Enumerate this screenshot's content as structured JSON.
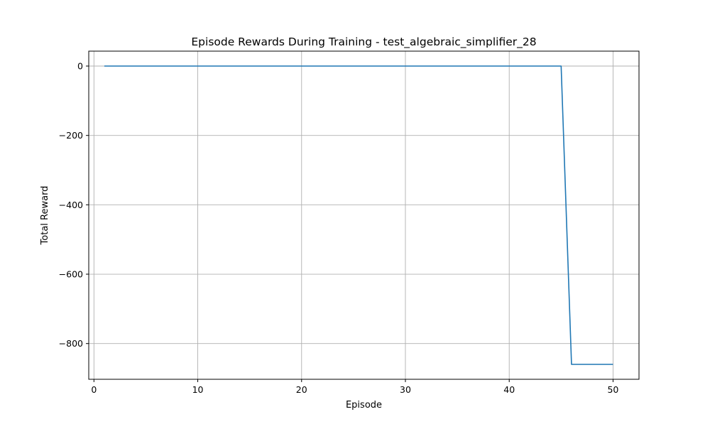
{
  "chart_data": {
    "type": "line",
    "title": "Episode Rewards During Training - test_algebraic_simplifier_28",
    "xlabel": "Episode",
    "ylabel": "Total Reward",
    "xlim": [
      -0.5,
      52.5
    ],
    "ylim": [
      -903,
      43
    ],
    "x_ticks": [
      0,
      10,
      20,
      30,
      40,
      50
    ],
    "x_tick_labels": [
      "0",
      "10",
      "20",
      "30",
      "40",
      "50"
    ],
    "y_ticks": [
      0,
      -200,
      -400,
      -600,
      -800
    ],
    "y_tick_labels": [
      "0",
      "−200",
      "−400",
      "−600",
      "−800"
    ],
    "grid": true,
    "legend": "none",
    "line_color": "#1f77b4",
    "grid_color": "#b0b0b0",
    "series": [
      {
        "x": [
          1,
          2,
          3,
          4,
          5,
          6,
          7,
          8,
          9,
          10,
          11,
          12,
          13,
          14,
          15,
          16,
          17,
          18,
          19,
          20,
          21,
          22,
          23,
          24,
          25,
          26,
          27,
          28,
          29,
          30,
          31,
          32,
          33,
          34,
          35,
          36,
          37,
          38,
          39,
          40,
          41,
          42,
          43,
          44,
          45,
          46,
          47,
          48,
          49,
          50
        ],
        "y": [
          0,
          0,
          0,
          0,
          0,
          0,
          0,
          0,
          0,
          0,
          0,
          0,
          0,
          0,
          0,
          0,
          0,
          0,
          0,
          0,
          0,
          0,
          0,
          0,
          0,
          0,
          0,
          0,
          0,
          0,
          0,
          0,
          0,
          0,
          0,
          0,
          0,
          0,
          0,
          0,
          0,
          0,
          0,
          0,
          0,
          -860,
          -860,
          -860,
          -860,
          -860
        ]
      }
    ]
  }
}
